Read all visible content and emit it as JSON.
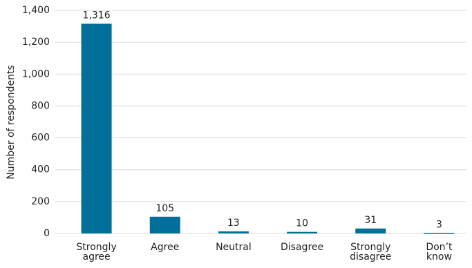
{
  "chart_data": {
    "type": "bar",
    "y_label": "Number of respondents",
    "categories": [
      "Strongly agree",
      "Agree",
      "Neutral",
      "Disagree",
      "Strongly disagree",
      "Don’t know"
    ],
    "values": [
      1316,
      105,
      13,
      10,
      31,
      3
    ],
    "value_labels": [
      "1,316",
      "105",
      "13",
      "10",
      "31",
      "3"
    ],
    "color": "#00709a",
    "ylim": [
      0,
      1400
    ],
    "yticks": [
      0,
      200,
      400,
      600,
      800,
      {
        "value": 1000,
        "label": "1,000"
      },
      {
        "value": 1200,
        "label": "1,200"
      },
      {
        "value": 1400,
        "label": "1,400"
      }
    ],
    "grid": true
  }
}
